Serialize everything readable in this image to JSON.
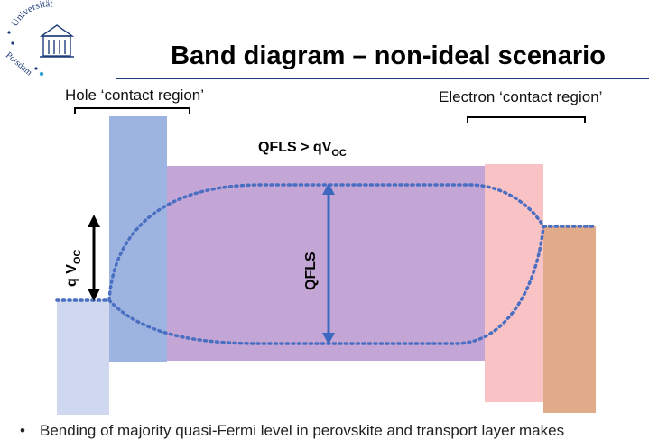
{
  "logo": {
    "text_arc": "Universität",
    "text_side": "Potsdam",
    "icon": "university-building-icon"
  },
  "slide": {
    "title": "Band diagram – non-ideal scenario",
    "hole_contact_label": "Hole ‘contact region’",
    "electron_contact_label": "Electron ‘contact region’",
    "qfls_gt_label_main": "QFLS > qV",
    "qfls_gt_label_sub": "OC",
    "qfls_label": "QFLS",
    "qvoc_label_main": "q V",
    "qvoc_label_sub": "OC",
    "bullet_text": "Bending of majority quasi-Fermi level in perovskite and transport layer makes"
  },
  "colors": {
    "title_rule": "#1f3d7a",
    "hole_contact_metal": "#cfd8ef",
    "hole_transport_layer": "#9eb4e0",
    "perovskite": "#c3a6d6",
    "electron_transport_layer": "#f9c3c5",
    "electron_contact_metal": "#e1aa88",
    "quasi_fermi_dotted": "#4a6fc2",
    "qfls_arrow": "#3c68c0"
  }
}
